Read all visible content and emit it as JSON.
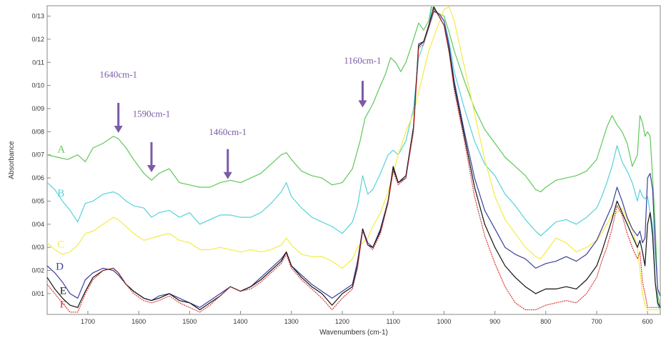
{
  "chart_data": {
    "type": "line",
    "xlabel": "Wavenumbers (cm-1)",
    "ylabel": "Absorbance",
    "xlim": [
      1780,
      575
    ],
    "ylim": [
      0.001,
      0.1345
    ],
    "x_reversed": true,
    "grid": false,
    "x_ticks": [
      1700,
      1600,
      1500,
      1400,
      1300,
      1200,
      1100,
      1000,
      900,
      800,
      700,
      600
    ],
    "y_ticks": [
      0.01,
      0.02,
      0.03,
      0.04,
      0.05,
      0.06,
      0.07,
      0.08,
      0.09,
      0.1,
      0.11,
      0.12,
      0.13
    ],
    "y_tick_labels": [
      "0/01",
      "0/02",
      "0/03",
      "0/04",
      "0/05",
      "0/06",
      "0/07",
      "0/08",
      "0/09",
      "0/10",
      "0/11",
      "0/12",
      "0/13"
    ],
    "annotations": [
      {
        "text": "1640cm-1",
        "x": 1640,
        "label_y": 0.1035,
        "arrow_from": 0.0925,
        "arrow_to": 0.0795,
        "color": "#7b5aa6"
      },
      {
        "text": "1590cm-1",
        "x": 1575,
        "label_y": 0.0865,
        "arrow_from": 0.0755,
        "arrow_to": 0.0625,
        "color": "#7b5aa6"
      },
      {
        "text": "1460cm-1",
        "x": 1425,
        "label_y": 0.0785,
        "arrow_from": 0.0725,
        "arrow_to": 0.0595,
        "color": "#7b5aa6"
      },
      {
        "text": "1160cm-1",
        "x": 1160,
        "label_y": 0.1095,
        "arrow_from": 0.102,
        "arrow_to": 0.0905,
        "color": "#7b5aa6"
      }
    ],
    "series": [
      {
        "name": "A",
        "color": "#5ec85a",
        "label_x": 1760,
        "label_y": 0.0725,
        "x": [
          1780,
          1760,
          1740,
          1720,
          1705,
          1690,
          1670,
          1650,
          1640,
          1625,
          1610,
          1590,
          1575,
          1560,
          1540,
          1520,
          1500,
          1480,
          1460,
          1440,
          1420,
          1400,
          1380,
          1360,
          1340,
          1320,
          1310,
          1300,
          1280,
          1260,
          1240,
          1220,
          1200,
          1180,
          1165,
          1155,
          1140,
          1125,
          1115,
          1105,
          1095,
          1085,
          1075,
          1060,
          1050,
          1040,
          1030,
          1025,
          1010,
          1000,
          990,
          980,
          960,
          940,
          920,
          900,
          880,
          860,
          840,
          820,
          810,
          800,
          780,
          760,
          740,
          720,
          700,
          690,
          680,
          670,
          660,
          650,
          640,
          630,
          620,
          615,
          610,
          605,
          600,
          595,
          590,
          585,
          580,
          575
        ],
        "y": [
          0.07,
          0.069,
          0.068,
          0.07,
          0.067,
          0.073,
          0.075,
          0.078,
          0.077,
          0.073,
          0.068,
          0.062,
          0.059,
          0.062,
          0.064,
          0.058,
          0.057,
          0.056,
          0.056,
          0.058,
          0.059,
          0.058,
          0.06,
          0.062,
          0.066,
          0.07,
          0.071,
          0.068,
          0.063,
          0.061,
          0.06,
          0.057,
          0.058,
          0.064,
          0.076,
          0.086,
          0.092,
          0.1,
          0.105,
          0.112,
          0.11,
          0.106,
          0.11,
          0.12,
          0.127,
          0.124,
          0.128,
          0.134,
          0.131,
          0.13,
          0.123,
          0.115,
          0.102,
          0.09,
          0.081,
          0.075,
          0.069,
          0.065,
          0.061,
          0.055,
          0.054,
          0.056,
          0.059,
          0.06,
          0.061,
          0.063,
          0.068,
          0.075,
          0.082,
          0.087,
          0.083,
          0.08,
          0.075,
          0.065,
          0.07,
          0.087,
          0.084,
          0.078,
          0.08,
          0.078,
          0.06,
          0.04,
          0.01,
          0.003
        ]
      },
      {
        "name": "B",
        "color": "#55d2da",
        "label_x": 1760,
        "label_y": 0.0535,
        "x": [
          1780,
          1765,
          1750,
          1735,
          1720,
          1705,
          1690,
          1670,
          1650,
          1640,
          1625,
          1610,
          1590,
          1575,
          1560,
          1540,
          1520,
          1500,
          1480,
          1460,
          1440,
          1420,
          1400,
          1380,
          1360,
          1340,
          1320,
          1310,
          1300,
          1280,
          1260,
          1240,
          1220,
          1200,
          1180,
          1170,
          1160,
          1150,
          1140,
          1125,
          1110,
          1100,
          1090,
          1075,
          1060,
          1050,
          1040,
          1030,
          1025,
          1010,
          1000,
          990,
          980,
          960,
          940,
          920,
          900,
          880,
          860,
          840,
          820,
          810,
          800,
          780,
          760,
          740,
          720,
          700,
          690,
          680,
          670,
          660,
          650,
          640,
          630,
          620,
          615,
          610,
          605,
          600,
          595,
          590,
          585,
          580,
          575
        ],
        "y": [
          0.058,
          0.055,
          0.05,
          0.046,
          0.041,
          0.049,
          0.05,
          0.053,
          0.054,
          0.053,
          0.05,
          0.048,
          0.047,
          0.043,
          0.045,
          0.046,
          0.043,
          0.045,
          0.04,
          0.042,
          0.044,
          0.044,
          0.043,
          0.043,
          0.045,
          0.049,
          0.054,
          0.058,
          0.052,
          0.047,
          0.043,
          0.041,
          0.039,
          0.036,
          0.041,
          0.048,
          0.061,
          0.053,
          0.055,
          0.062,
          0.07,
          0.072,
          0.07,
          0.076,
          0.09,
          0.112,
          0.118,
          0.125,
          0.133,
          0.131,
          0.128,
          0.119,
          0.106,
          0.09,
          0.076,
          0.066,
          0.061,
          0.053,
          0.048,
          0.042,
          0.037,
          0.035,
          0.037,
          0.041,
          0.042,
          0.04,
          0.043,
          0.047,
          0.052,
          0.058,
          0.065,
          0.074,
          0.067,
          0.063,
          0.058,
          0.05,
          0.055,
          0.052,
          0.051,
          0.052,
          0.045,
          0.04,
          0.015,
          0.005,
          0.003
        ]
      },
      {
        "name": "C",
        "color": "#f3ec44",
        "label_x": 1760,
        "label_y": 0.0315,
        "x": [
          1780,
          1765,
          1750,
          1735,
          1720,
          1705,
          1690,
          1670,
          1650,
          1640,
          1625,
          1610,
          1590,
          1575,
          1560,
          1540,
          1520,
          1500,
          1480,
          1460,
          1440,
          1420,
          1400,
          1380,
          1360,
          1340,
          1320,
          1310,
          1300,
          1280,
          1260,
          1240,
          1220,
          1200,
          1180,
          1170,
          1160,
          1150,
          1140,
          1125,
          1110,
          1100,
          1090,
          1075,
          1060,
          1050,
          1040,
          1030,
          1020,
          1010,
          1000,
          990,
          980,
          960,
          940,
          920,
          900,
          880,
          860,
          840,
          820,
          810,
          800,
          780,
          760,
          740,
          720,
          700,
          690,
          680,
          670,
          660,
          650,
          640,
          630,
          620,
          615,
          610,
          605,
          600,
          595,
          590,
          585,
          580,
          575
        ],
        "y": [
          0.032,
          0.029,
          0.027,
          0.028,
          0.031,
          0.036,
          0.037,
          0.04,
          0.043,
          0.042,
          0.039,
          0.036,
          0.033,
          0.034,
          0.035,
          0.036,
          0.033,
          0.032,
          0.029,
          0.029,
          0.03,
          0.029,
          0.028,
          0.029,
          0.028,
          0.029,
          0.031,
          0.034,
          0.031,
          0.027,
          0.026,
          0.026,
          0.024,
          0.021,
          0.025,
          0.03,
          0.032,
          0.034,
          0.039,
          0.045,
          0.054,
          0.062,
          0.07,
          0.08,
          0.088,
          0.097,
          0.106,
          0.115,
          0.121,
          0.127,
          0.133,
          0.134,
          0.128,
          0.108,
          0.088,
          0.068,
          0.052,
          0.042,
          0.036,
          0.03,
          0.026,
          0.025,
          0.028,
          0.034,
          0.032,
          0.028,
          0.03,
          0.033,
          0.036,
          0.04,
          0.044,
          0.045,
          0.047,
          0.042,
          0.038,
          0.03,
          0.02,
          0.01,
          0.005,
          0.003,
          0.003,
          0.003,
          0.003,
          0.003,
          0.003
        ]
      },
      {
        "name": "D",
        "color": "#3b3f9c",
        "label_x": 1763,
        "label_y": 0.0218,
        "x": [
          1780,
          1765,
          1750,
          1735,
          1720,
          1705,
          1690,
          1670,
          1650,
          1640,
          1625,
          1610,
          1590,
          1575,
          1560,
          1540,
          1520,
          1500,
          1480,
          1460,
          1440,
          1420,
          1400,
          1380,
          1360,
          1340,
          1320,
          1310,
          1300,
          1280,
          1260,
          1240,
          1220,
          1200,
          1180,
          1170,
          1160,
          1150,
          1140,
          1125,
          1110,
          1100,
          1090,
          1075,
          1060,
          1050,
          1040,
          1030,
          1020,
          1010,
          1000,
          990,
          980,
          960,
          940,
          920,
          900,
          880,
          860,
          840,
          820,
          810,
          800,
          780,
          760,
          740,
          720,
          700,
          690,
          680,
          670,
          660,
          650,
          640,
          630,
          620,
          615,
          610,
          605,
          600,
          595,
          590,
          585,
          580,
          575
        ],
        "y": [
          0.022,
          0.019,
          0.015,
          0.01,
          0.008,
          0.016,
          0.019,
          0.021,
          0.02,
          0.018,
          0.014,
          0.011,
          0.008,
          0.007,
          0.009,
          0.01,
          0.008,
          0.006,
          0.004,
          0.007,
          0.01,
          0.013,
          0.011,
          0.013,
          0.017,
          0.021,
          0.025,
          0.028,
          0.022,
          0.018,
          0.014,
          0.011,
          0.008,
          0.011,
          0.014,
          0.024,
          0.038,
          0.032,
          0.03,
          0.038,
          0.05,
          0.064,
          0.058,
          0.06,
          0.082,
          0.118,
          0.119,
          0.125,
          0.132,
          0.131,
          0.128,
          0.117,
          0.102,
          0.08,
          0.06,
          0.046,
          0.038,
          0.03,
          0.027,
          0.025,
          0.021,
          0.022,
          0.023,
          0.024,
          0.026,
          0.024,
          0.027,
          0.033,
          0.038,
          0.043,
          0.048,
          0.056,
          0.05,
          0.043,
          0.038,
          0.035,
          0.037,
          0.032,
          0.034,
          0.06,
          0.062,
          0.055,
          0.03,
          0.012,
          0.009
        ]
      },
      {
        "name": "E",
        "color": "#111111",
        "label_x": 1755,
        "label_y": 0.0113,
        "x": [
          1780,
          1765,
          1750,
          1735,
          1720,
          1705,
          1690,
          1670,
          1650,
          1640,
          1625,
          1610,
          1590,
          1575,
          1560,
          1540,
          1520,
          1500,
          1480,
          1460,
          1440,
          1420,
          1400,
          1380,
          1360,
          1340,
          1320,
          1310,
          1300,
          1280,
          1260,
          1240,
          1220,
          1200,
          1180,
          1170,
          1160,
          1150,
          1140,
          1125,
          1110,
          1100,
          1090,
          1075,
          1060,
          1050,
          1040,
          1030,
          1020,
          1010,
          1000,
          990,
          980,
          960,
          940,
          920,
          900,
          880,
          860,
          840,
          820,
          810,
          800,
          780,
          760,
          740,
          720,
          700,
          690,
          680,
          670,
          660,
          650,
          640,
          630,
          620,
          615,
          610,
          605,
          600,
          595,
          590,
          585,
          580,
          575
        ],
        "y": [
          0.017,
          0.012,
          0.008,
          0.005,
          0.004,
          0.011,
          0.017,
          0.02,
          0.021,
          0.019,
          0.014,
          0.011,
          0.008,
          0.007,
          0.008,
          0.01,
          0.007,
          0.006,
          0.003,
          0.006,
          0.009,
          0.013,
          0.011,
          0.013,
          0.016,
          0.02,
          0.024,
          0.028,
          0.022,
          0.017,
          0.013,
          0.01,
          0.005,
          0.01,
          0.013,
          0.022,
          0.038,
          0.031,
          0.03,
          0.037,
          0.05,
          0.065,
          0.058,
          0.061,
          0.082,
          0.117,
          0.119,
          0.126,
          0.134,
          0.13,
          0.126,
          0.115,
          0.1,
          0.078,
          0.056,
          0.04,
          0.03,
          0.022,
          0.017,
          0.013,
          0.01,
          0.011,
          0.012,
          0.012,
          0.013,
          0.012,
          0.016,
          0.022,
          0.028,
          0.035,
          0.042,
          0.05,
          0.045,
          0.04,
          0.035,
          0.03,
          0.033,
          0.028,
          0.022,
          0.04,
          0.045,
          0.035,
          0.015,
          0.006,
          0.004
        ]
      },
      {
        "name": "F",
        "color": "#d23a3a",
        "label_x": 1755,
        "label_y": 0.0055,
        "x": [
          1780,
          1765,
          1750,
          1735,
          1720,
          1705,
          1690,
          1670,
          1650,
          1640,
          1625,
          1610,
          1590,
          1575,
          1560,
          1540,
          1520,
          1500,
          1480,
          1460,
          1440,
          1420,
          1400,
          1380,
          1360,
          1340,
          1320,
          1310,
          1300,
          1280,
          1260,
          1240,
          1220,
          1200,
          1180,
          1170,
          1160,
          1150,
          1140,
          1125,
          1110,
          1100,
          1090,
          1075,
          1060,
          1050,
          1040,
          1030,
          1020,
          1010,
          1000,
          990,
          980,
          960,
          940,
          920,
          900,
          880,
          860,
          840,
          820,
          810,
          800,
          780,
          760,
          740,
          720,
          700,
          690,
          680,
          670,
          660,
          650,
          640,
          630,
          620,
          615,
          610,
          605,
          600,
          595,
          590,
          585,
          580,
          575
        ],
        "y": [
          0.014,
          0.01,
          0.006,
          0.002,
          0.002,
          0.01,
          0.016,
          0.02,
          0.021,
          0.019,
          0.014,
          0.01,
          0.007,
          0.006,
          0.007,
          0.009,
          0.006,
          0.004,
          0.002,
          0.005,
          0.009,
          0.013,
          0.011,
          0.012,
          0.015,
          0.019,
          0.023,
          0.027,
          0.021,
          0.016,
          0.012,
          0.008,
          0.003,
          0.008,
          0.012,
          0.021,
          0.037,
          0.031,
          0.029,
          0.036,
          0.049,
          0.063,
          0.057,
          0.06,
          0.08,
          0.116,
          0.118,
          0.125,
          0.133,
          0.13,
          0.126,
          0.114,
          0.098,
          0.076,
          0.052,
          0.035,
          0.023,
          0.013,
          0.006,
          0.003,
          0.003,
          0.004,
          0.005,
          0.006,
          0.007,
          0.006,
          0.01,
          0.017,
          0.024,
          0.03,
          0.038,
          0.048,
          0.044,
          0.036,
          0.03,
          0.025,
          0.028,
          0.015,
          0.01,
          0.004,
          0.004,
          0.004,
          0.004,
          0.004,
          0.004
        ]
      }
    ]
  }
}
